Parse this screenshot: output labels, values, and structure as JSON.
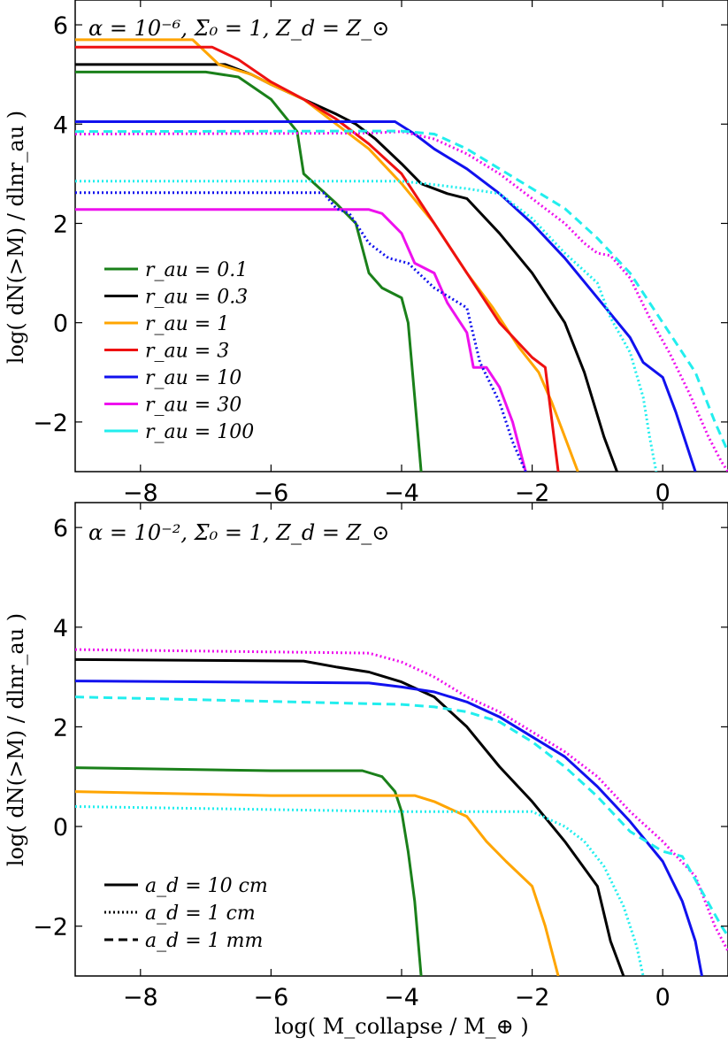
{
  "chart_data": [
    {
      "type": "line",
      "title": "α = 10⁻⁶, Σ₀ = 1, Z_d = Z_⊙",
      "xlabel": "",
      "ylabel": "log( dN(>M) / dlnr_au )",
      "xlim": [
        -9,
        1
      ],
      "ylim": [
        -3,
        6.5
      ],
      "xticks": [
        -8,
        -6,
        -4,
        -2,
        0
      ],
      "yticks": [
        -2,
        0,
        2,
        4,
        6
      ],
      "legend": {
        "placement": "lower-left",
        "entries": [
          {
            "label": "r_au = 0.1",
            "color": "#1a801a",
            "style": "solid"
          },
          {
            "label": "r_au = 0.3",
            "color": "#000000",
            "style": "solid"
          },
          {
            "label": "r_au = 1",
            "color": "#ffa500",
            "style": "solid"
          },
          {
            "label": "r_au = 3",
            "color": "#ee1111",
            "style": "solid"
          },
          {
            "label": "r_au = 10",
            "color": "#1111ee",
            "style": "solid"
          },
          {
            "label": "r_au = 30",
            "color": "#ee11ee",
            "style": "solid"
          },
          {
            "label": "r_au = 100",
            "color": "#22eeee",
            "style": "solid"
          }
        ]
      },
      "series": [
        {
          "color": "#1a801a",
          "style": "solid",
          "points": [
            [
              -9,
              5.05
            ],
            [
              -7,
              5.05
            ],
            [
              -6.5,
              4.95
            ],
            [
              -6,
              4.5
            ],
            [
              -5.6,
              3.85
            ],
            [
              -5.5,
              3.0
            ],
            [
              -5.0,
              2.4
            ],
            [
              -4.7,
              2.0
            ],
            [
              -4.5,
              1.0
            ],
            [
              -4.3,
              0.7
            ],
            [
              -4.0,
              0.5
            ],
            [
              -3.9,
              0.0
            ],
            [
              -3.8,
              -1.5
            ],
            [
              -3.7,
              -3.0
            ]
          ]
        },
        {
          "name": "",
          "color": "#000000",
          "style": "solid",
          "points": [
            [
              -9,
              5.2
            ],
            [
              -6.7,
              5.2
            ],
            [
              -6.3,
              5.0
            ],
            [
              -6.0,
              4.8
            ],
            [
              -5.5,
              4.5
            ],
            [
              -5.0,
              4.2
            ],
            [
              -4.7,
              4.0
            ],
            [
              -4.4,
              3.7
            ],
            [
              -4.0,
              3.2
            ],
            [
              -3.7,
              2.8
            ],
            [
              -3.3,
              2.6
            ],
            [
              -3.0,
              2.5
            ],
            [
              -2.5,
              1.8
            ],
            [
              -2.0,
              1.0
            ],
            [
              -1.5,
              0.0
            ],
            [
              -1.2,
              -1.0
            ],
            [
              -0.9,
              -2.3
            ],
            [
              -0.7,
              -3.0
            ]
          ]
        },
        {
          "color": "#ffa500",
          "style": "solid",
          "points": [
            [
              -9,
              5.7
            ],
            [
              -7.2,
              5.7
            ],
            [
              -6.8,
              5.2
            ],
            [
              -6.3,
              5.0
            ],
            [
              -6.0,
              4.8
            ],
            [
              -5.5,
              4.5
            ],
            [
              -5.0,
              4.0
            ],
            [
              -4.5,
              3.5
            ],
            [
              -4.0,
              2.8
            ],
            [
              -3.5,
              2.0
            ],
            [
              -3.0,
              1.0
            ],
            [
              -2.6,
              0.3
            ],
            [
              -2.2,
              -0.5
            ],
            [
              -1.9,
              -1.0
            ],
            [
              -1.7,
              -1.6
            ],
            [
              -1.5,
              -2.3
            ],
            [
              -1.3,
              -3.0
            ]
          ]
        },
        {
          "color": "#ee1111",
          "style": "solid",
          "points": [
            [
              -9,
              5.55
            ],
            [
              -6.9,
              5.55
            ],
            [
              -6.5,
              5.3
            ],
            [
              -6.0,
              4.85
            ],
            [
              -5.5,
              4.5
            ],
            [
              -5.0,
              4.1
            ],
            [
              -4.5,
              3.6
            ],
            [
              -4.0,
              3.0
            ],
            [
              -3.5,
              2.0
            ],
            [
              -3.0,
              1.0
            ],
            [
              -2.5,
              0.0
            ],
            [
              -2.0,
              -0.7
            ],
            [
              -1.8,
              -0.9
            ],
            [
              -1.6,
              -3.0
            ]
          ]
        },
        {
          "color": "#1111ee",
          "style": "solid",
          "points": [
            [
              -9,
              4.05
            ],
            [
              -4.1,
              4.05
            ],
            [
              -3.8,
              3.8
            ],
            [
              -3.5,
              3.5
            ],
            [
              -3.0,
              3.1
            ],
            [
              -2.5,
              2.6
            ],
            [
              -2.0,
              2.0
            ],
            [
              -1.5,
              1.3
            ],
            [
              -1.0,
              0.5
            ],
            [
              -0.5,
              -0.3
            ],
            [
              -0.3,
              -0.8
            ],
            [
              0.0,
              -1.1
            ],
            [
              0.2,
              -1.8
            ],
            [
              0.5,
              -3.0
            ]
          ]
        },
        {
          "color": "#ee11ee",
          "style": "solid",
          "points": [
            [
              -9,
              2.28
            ],
            [
              -4.5,
              2.28
            ],
            [
              -4.3,
              2.2
            ],
            [
              -4.0,
              1.8
            ],
            [
              -3.8,
              1.2
            ],
            [
              -3.5,
              1.0
            ],
            [
              -3.3,
              0.4
            ],
            [
              -3.0,
              -0.2
            ],
            [
              -2.9,
              -0.9
            ],
            [
              -2.7,
              -0.9
            ],
            [
              -2.5,
              -1.3
            ],
            [
              -2.3,
              -2.0
            ],
            [
              -2.1,
              -3.0
            ]
          ]
        },
        {
          "color": "#ee11ee",
          "style": "dotted",
          "points": [
            [
              -9,
              3.8
            ],
            [
              -4.5,
              3.82
            ],
            [
              -4.0,
              3.85
            ],
            [
              -3.5,
              3.7
            ],
            [
              -3.0,
              3.4
            ],
            [
              -2.5,
              3.0
            ],
            [
              -2.0,
              2.5
            ],
            [
              -1.5,
              2.0
            ],
            [
              -1.2,
              1.6
            ],
            [
              -1.0,
              1.4
            ],
            [
              -0.8,
              1.35
            ],
            [
              -0.5,
              0.9
            ],
            [
              -0.2,
              0.1
            ],
            [
              0.1,
              -0.6
            ],
            [
              0.4,
              -1.4
            ],
            [
              0.7,
              -2.3
            ],
            [
              0.9,
              -2.8
            ],
            [
              1.0,
              -3.0
            ]
          ]
        },
        {
          "color": "#1111ee",
          "style": "dotted",
          "points": [
            [
              -9,
              2.62
            ],
            [
              -5.2,
              2.62
            ],
            [
              -5.0,
              2.3
            ],
            [
              -4.8,
              2.2
            ],
            [
              -4.5,
              1.6
            ],
            [
              -4.2,
              1.3
            ],
            [
              -3.9,
              1.2
            ],
            [
              -3.5,
              0.7
            ],
            [
              -3.0,
              0.3
            ],
            [
              -2.8,
              -0.8
            ],
            [
              -2.5,
              -1.6
            ],
            [
              -2.3,
              -2.4
            ],
            [
              -2.1,
              -3.0
            ]
          ]
        },
        {
          "color": "#22eeee",
          "style": "dotted",
          "points": [
            [
              -9,
              2.85
            ],
            [
              -4.0,
              2.85
            ],
            [
              -3.5,
              2.78
            ],
            [
              -3.0,
              2.7
            ],
            [
              -2.5,
              2.6
            ],
            [
              -2.0,
              2.1
            ],
            [
              -1.5,
              1.4
            ],
            [
              -1.0,
              0.8
            ],
            [
              -0.8,
              0.1
            ],
            [
              -0.5,
              -0.6
            ],
            [
              -0.3,
              -1.5
            ],
            [
              -0.2,
              -2.3
            ],
            [
              -0.1,
              -3.0
            ]
          ]
        },
        {
          "color": "#22eeee",
          "style": "dashed",
          "points": [
            [
              -9,
              3.85
            ],
            [
              -4.5,
              3.86
            ],
            [
              -4.0,
              3.86
            ],
            [
              -3.5,
              3.8
            ],
            [
              -3.0,
              3.5
            ],
            [
              -2.5,
              3.1
            ],
            [
              -2.0,
              2.7
            ],
            [
              -1.5,
              2.3
            ],
            [
              -1.0,
              1.7
            ],
            [
              -0.5,
              1.0
            ],
            [
              0.0,
              0.0
            ],
            [
              0.5,
              -1.0
            ],
            [
              0.8,
              -2.0
            ],
            [
              1.0,
              -2.6
            ]
          ]
        }
      ]
    },
    {
      "type": "line",
      "title": "α = 10⁻², Σ₀ = 1, Z_d = Z_⊙",
      "xlabel": "log( M_collapse / M_⊕ )",
      "ylabel": "log( dN(>M) / dlnr_au )",
      "xlim": [
        -9,
        1
      ],
      "ylim": [
        -3,
        6.5
      ],
      "xticks": [
        -8,
        -6,
        -4,
        -2,
        0
      ],
      "yticks": [
        -2,
        0,
        2,
        4,
        6
      ],
      "legend": {
        "placement": "lower-left",
        "entries": [
          {
            "label": "a_d = 10 cm",
            "color": "#000000",
            "style": "solid"
          },
          {
            "label": "a_d = 1 cm",
            "color": "#000000",
            "style": "dotted"
          },
          {
            "label": "a_d = 1 mm",
            "color": "#000000",
            "style": "dashed"
          }
        ]
      },
      "series": [
        {
          "color": "#ee11ee",
          "style": "dotted",
          "points": [
            [
              -9,
              3.55
            ],
            [
              -4.5,
              3.48
            ],
            [
              -4.0,
              3.3
            ],
            [
              -3.5,
              3.0
            ],
            [
              -3.0,
              2.6
            ],
            [
              -2.5,
              2.3
            ],
            [
              -2.0,
              1.9
            ],
            [
              -1.5,
              1.5
            ],
            [
              -1.0,
              1.0
            ],
            [
              -0.5,
              0.3
            ],
            [
              0.0,
              -0.3
            ],
            [
              0.5,
              -1.0
            ],
            [
              0.8,
              -2.0
            ],
            [
              1.0,
              -2.5
            ]
          ]
        },
        {
          "color": "#000000",
          "style": "solid",
          "points": [
            [
              -9,
              3.35
            ],
            [
              -5.5,
              3.32
            ],
            [
              -5.0,
              3.2
            ],
            [
              -4.5,
              3.1
            ],
            [
              -4.0,
              2.9
            ],
            [
              -3.5,
              2.6
            ],
            [
              -3.0,
              2.0
            ],
            [
              -2.5,
              1.2
            ],
            [
              -2.0,
              0.5
            ],
            [
              -1.5,
              -0.3
            ],
            [
              -1.0,
              -1.2
            ],
            [
              -0.8,
              -2.3
            ],
            [
              -0.6,
              -3.0
            ]
          ]
        },
        {
          "color": "#1111ee",
          "style": "solid",
          "points": [
            [
              -9,
              2.92
            ],
            [
              -4.5,
              2.88
            ],
            [
              -4.0,
              2.8
            ],
            [
              -3.5,
              2.7
            ],
            [
              -3.0,
              2.5
            ],
            [
              -2.5,
              2.2
            ],
            [
              -2.0,
              1.8
            ],
            [
              -1.5,
              1.4
            ],
            [
              -1.0,
              0.8
            ],
            [
              -0.5,
              0.1
            ],
            [
              0.0,
              -0.7
            ],
            [
              0.3,
              -1.5
            ],
            [
              0.5,
              -2.3
            ],
            [
              0.6,
              -3.0
            ]
          ]
        },
        {
          "color": "#22eeee",
          "style": "dashed",
          "points": [
            [
              -9,
              2.6
            ],
            [
              -4.0,
              2.45
            ],
            [
              -3.5,
              2.4
            ],
            [
              -3.0,
              2.3
            ],
            [
              -2.5,
              2.1
            ],
            [
              -2.0,
              1.7
            ],
            [
              -1.5,
              1.2
            ],
            [
              -1.0,
              0.6
            ],
            [
              -0.5,
              -0.1
            ],
            [
              0.0,
              -0.5
            ],
            [
              0.3,
              -0.6
            ],
            [
              0.6,
              -1.3
            ],
            [
              0.9,
              -2.0
            ],
            [
              1.0,
              -2.2
            ]
          ]
        },
        {
          "color": "#1a801a",
          "style": "solid",
          "points": [
            [
              -9,
              1.18
            ],
            [
              -6.0,
              1.12
            ],
            [
              -4.6,
              1.12
            ],
            [
              -4.3,
              1.0
            ],
            [
              -4.1,
              0.7
            ],
            [
              -4.0,
              0.3
            ],
            [
              -3.9,
              -0.5
            ],
            [
              -3.8,
              -1.5
            ],
            [
              -3.7,
              -3.0
            ]
          ]
        },
        {
          "color": "#ffa500",
          "style": "solid",
          "points": [
            [
              -9,
              0.7
            ],
            [
              -6.0,
              0.62
            ],
            [
              -3.8,
              0.62
            ],
            [
              -3.5,
              0.5
            ],
            [
              -3.0,
              0.2
            ],
            [
              -2.7,
              -0.3
            ],
            [
              -2.4,
              -0.7
            ],
            [
              -2.0,
              -1.2
            ],
            [
              -1.8,
              -2.0
            ],
            [
              -1.6,
              -3.0
            ]
          ]
        },
        {
          "color": "#22eeee",
          "style": "dotted",
          "points": [
            [
              -9,
              0.4
            ],
            [
              -4.0,
              0.3
            ],
            [
              -2.0,
              0.3
            ],
            [
              -1.5,
              0.0
            ],
            [
              -1.2,
              -0.3
            ],
            [
              -0.9,
              -0.8
            ],
            [
              -0.6,
              -1.6
            ],
            [
              -0.4,
              -2.4
            ],
            [
              -0.3,
              -3.0
            ]
          ]
        }
      ]
    }
  ]
}
